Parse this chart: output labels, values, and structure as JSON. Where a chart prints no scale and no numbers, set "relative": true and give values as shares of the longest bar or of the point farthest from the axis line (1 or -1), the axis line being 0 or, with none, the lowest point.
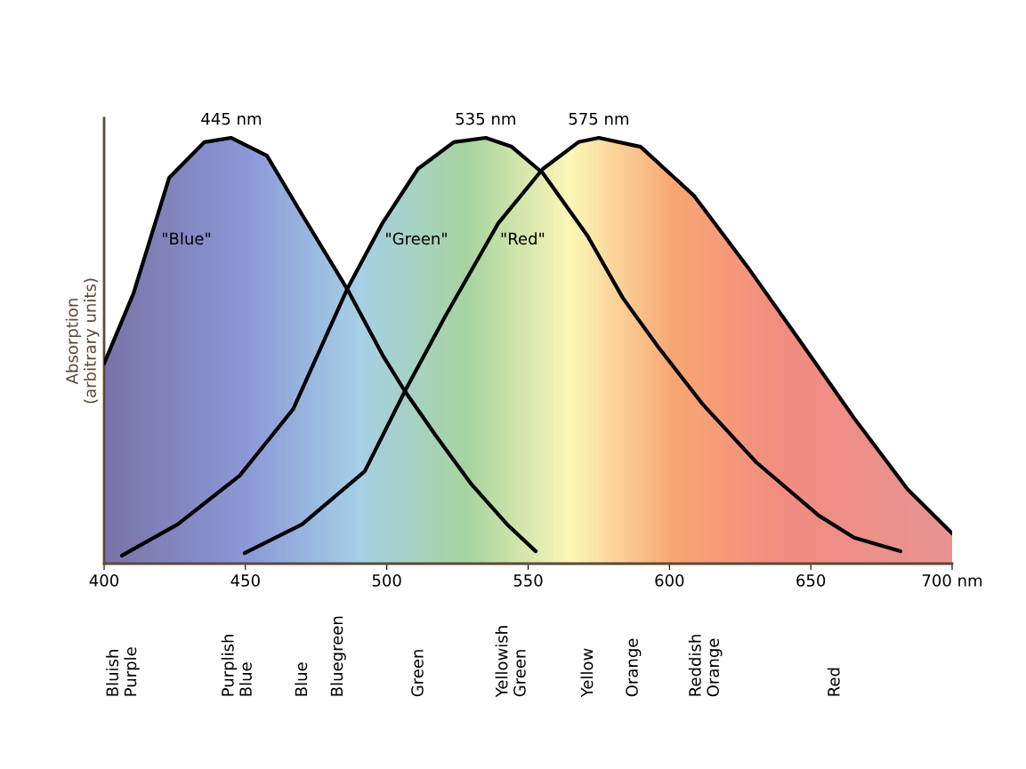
{
  "chart_data": {
    "type": "line",
    "relative": true,
    "ylabel": "Absorption\n(arbitrary units)",
    "xlim": [
      400,
      700
    ],
    "xticks": [
      400,
      450,
      500,
      550,
      600,
      650,
      {
        "value": 700,
        "label": "700 nm"
      }
    ],
    "grid": false,
    "legend": false,
    "marker": "none",
    "line_style": "solid",
    "series": [
      {
        "name": "\"Blue\"",
        "color": "#000000",
        "x": [
          400,
          410.4,
          423,
          435.5,
          445,
          457.6,
          470,
          486,
          498.5,
          506.4,
          517.4,
          530,
          542.6,
          552.7
        ],
        "values": [
          0.47,
          0.635,
          0.906,
          0.99,
          1,
          0.958,
          0.82,
          0.645,
          0.49,
          0.405,
          0.3,
          0.186,
          0.092,
          0.029
        ]
      },
      {
        "name": "\"Green\"",
        "color": "#000000",
        "x": [
          406.3,
          426,
          448,
          466.9,
          486,
          498.5,
          511,
          523.7,
          535,
          544.2,
          555.2,
          571,
          583.5,
          596,
          611.8,
          630.7,
          652.8,
          665.3,
          681.7
        ],
        "values": [
          0.019,
          0.092,
          0.207,
          0.363,
          0.645,
          0.8,
          0.927,
          0.99,
          1,
          0.979,
          0.917,
          0.77,
          0.624,
          0.509,
          0.374,
          0.238,
          0.113,
          0.061,
          0.029
        ]
      },
      {
        "name": "\"Red\"",
        "color": "#000000",
        "x": [
          449.7,
          470,
          492.2,
          506.4,
          520.6,
          539.5,
          555.2,
          567.8,
          575,
          589.8,
          608.7,
          627.6,
          646.5,
          665.3,
          684.2,
          700
        ],
        "values": [
          0.025,
          0.092,
          0.217,
          0.405,
          0.58,
          0.8,
          0.927,
          0.99,
          1,
          0.979,
          0.864,
          0.697,
          0.52,
          0.342,
          0.175,
          0.071
        ]
      }
    ],
    "annotations": [
      {
        "text": "445 nm",
        "x": 445,
        "y": 1
      },
      {
        "text": "535 nm",
        "x": 535,
        "y": 1
      },
      {
        "text": "575 nm",
        "x": 575,
        "y": 1
      },
      "Bluish\nPurple",
      "Purplish\nBlue",
      "Blue",
      "Bluegreen",
      "Green",
      "Yellowish\nGreen",
      "Yellow",
      "Orange",
      "Reddish\nOrange",
      "Red"
    ]
  }
}
